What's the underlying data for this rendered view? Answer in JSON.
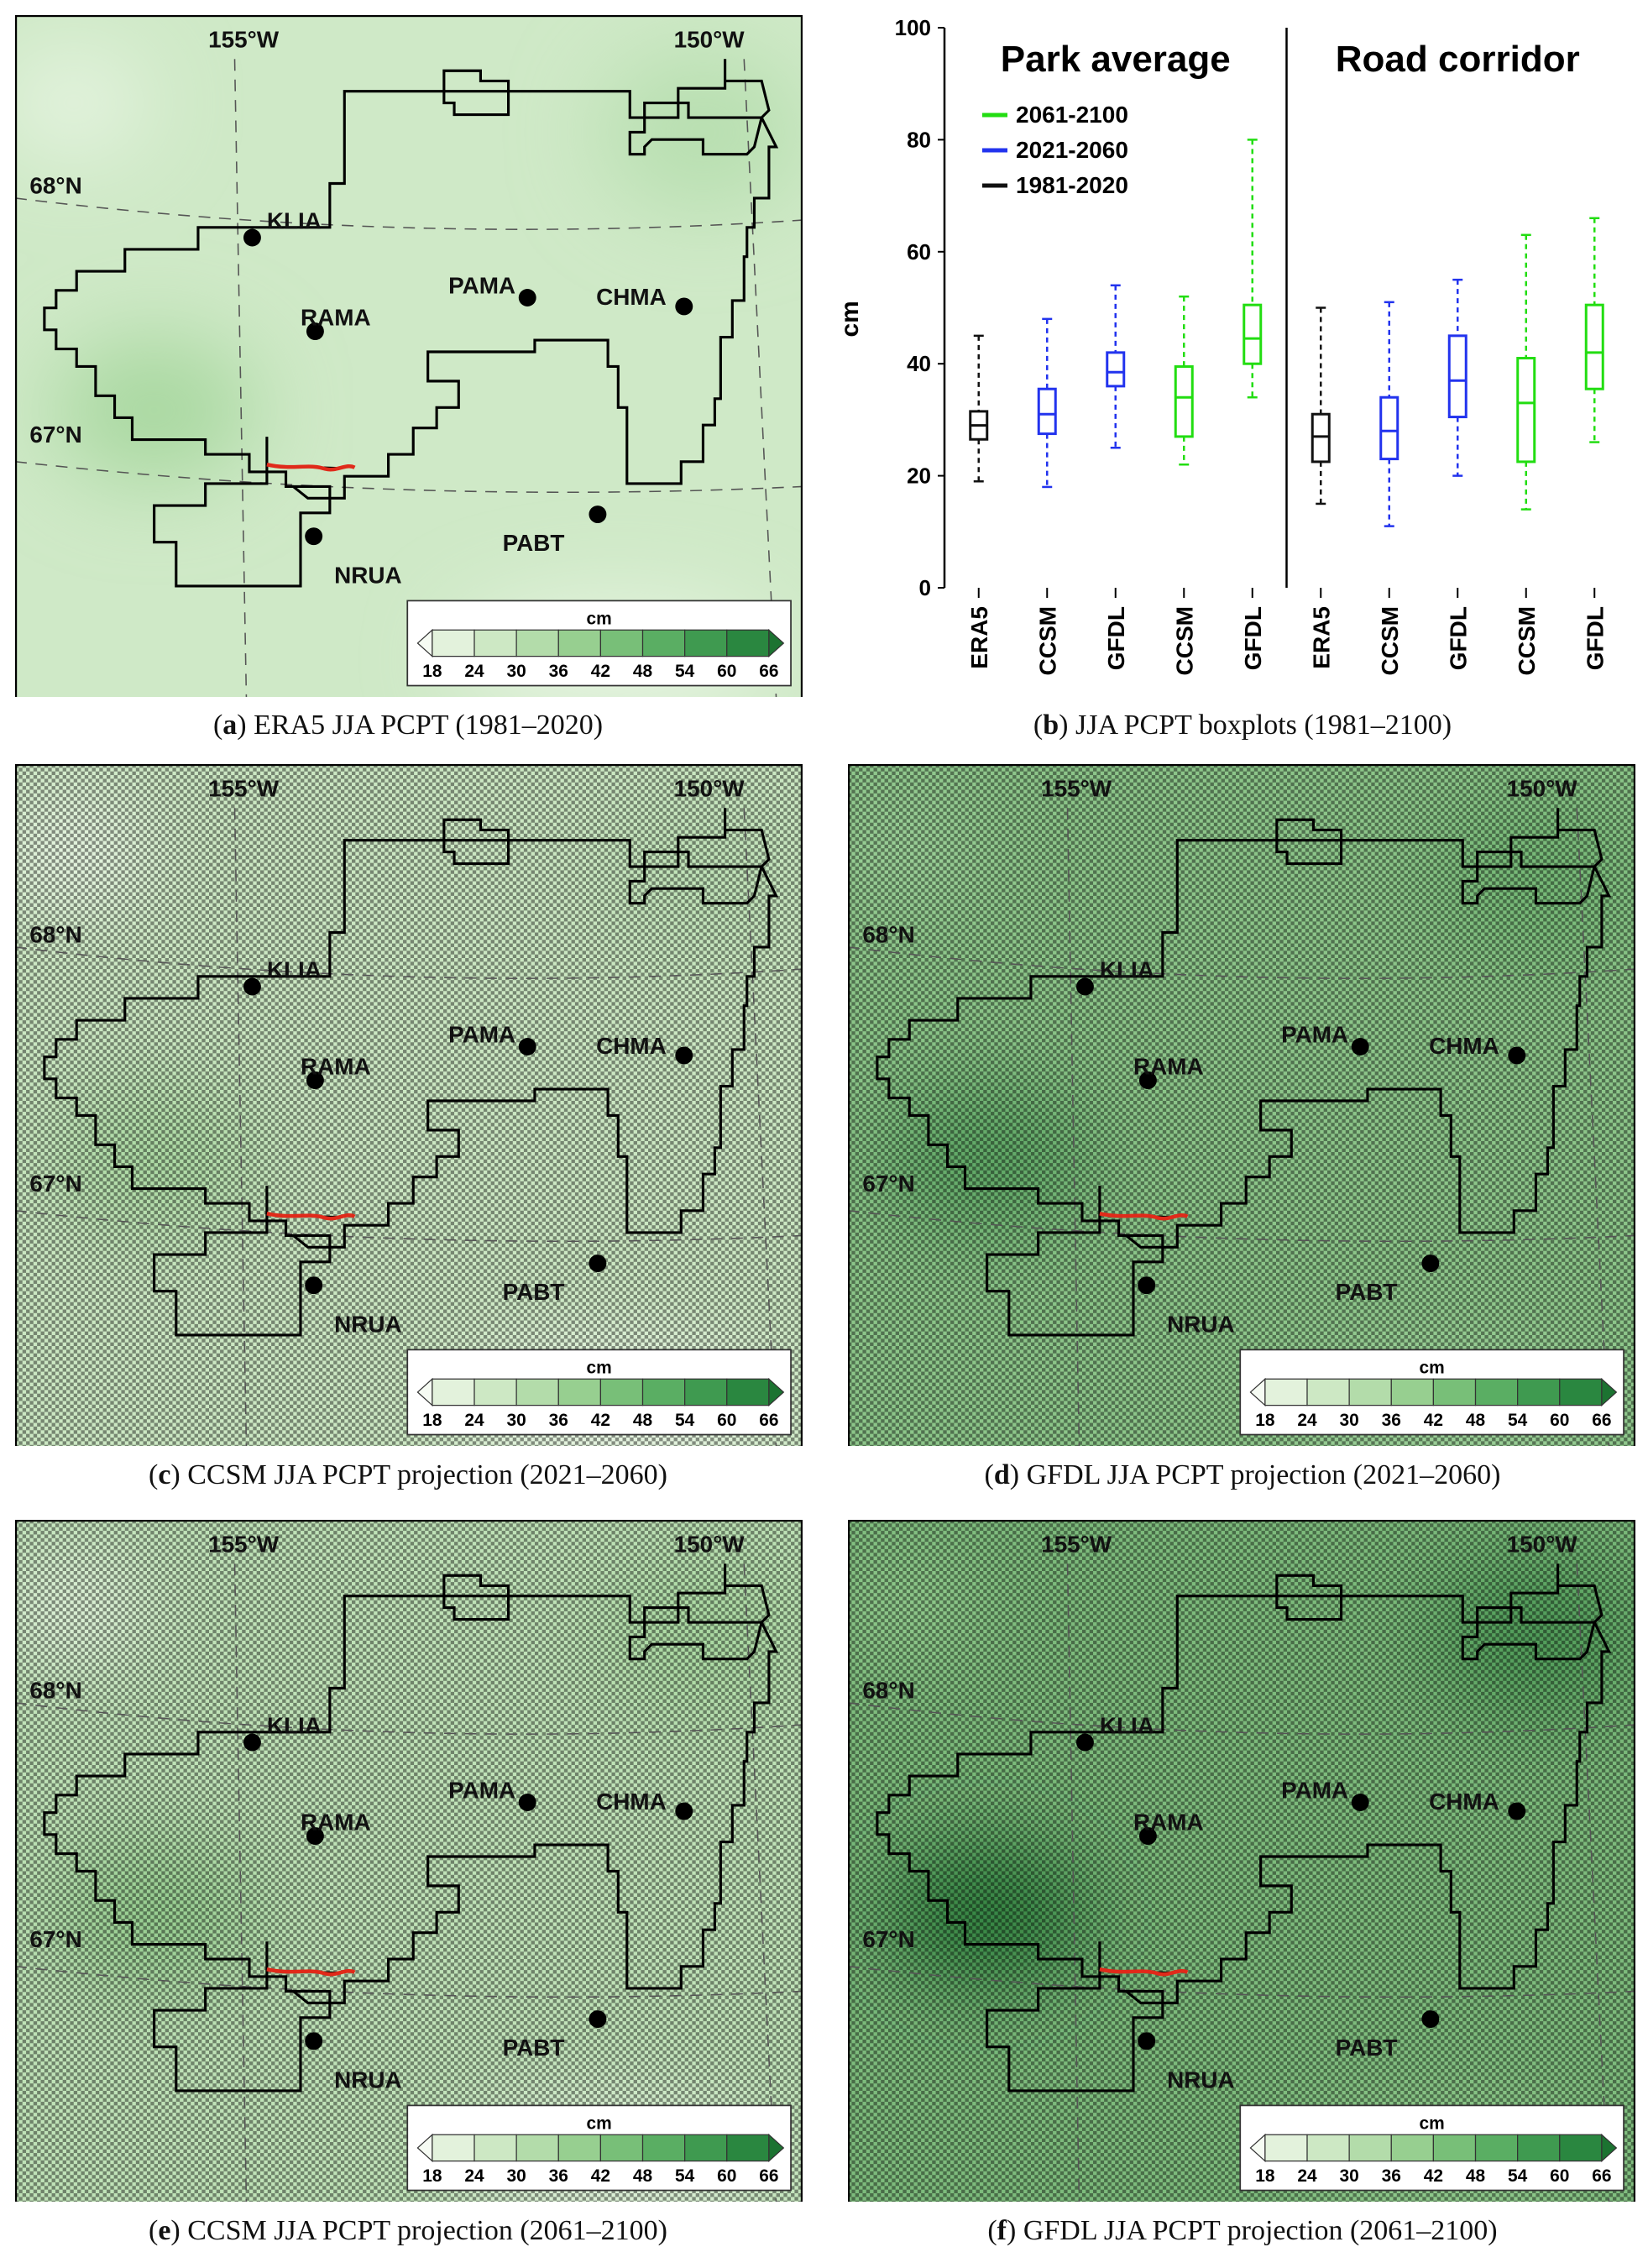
{
  "map_common": {
    "lon_labels": [
      "155°W",
      "150°W"
    ],
    "lat_labels": [
      "68°N",
      "67°N"
    ],
    "stations": [
      "KLIA",
      "RAMA",
      "PAMA",
      "CHMA",
      "PABT",
      "NRUA"
    ],
    "colorbar_title": "cm",
    "colorbar_ticks": [
      "18",
      "24",
      "30",
      "36",
      "42",
      "48",
      "54",
      "60",
      "66"
    ],
    "colorbar_colors": [
      "#f6fbf3",
      "#e3f2dc",
      "#cde8c4",
      "#b3dcaa",
      "#97cf90",
      "#78bf78",
      "#5aae63",
      "#3f9a50",
      "#2a8740",
      "#1c7331"
    ],
    "road_color": "#e02a1a"
  },
  "panels": [
    {
      "letter": "a",
      "caption": "ERA5 JJA PCPT (1981–2020)",
      "hatched": false,
      "base_color": "#cfe9c7",
      "blobs": [
        "#a9d8a0",
        "#e6f4e1",
        "#b8dfb0"
      ]
    },
    {
      "letter": "b",
      "caption": "JJA PCPT boxplots (1981–2100)"
    },
    {
      "letter": "c",
      "caption": "CCSM JJA PCPT projection (2021–2060)",
      "hatched": true,
      "base_color": "#cbe7c2",
      "blobs": [
        "#a9d8a0",
        "#eef8ea",
        "#bfe2b7"
      ]
    },
    {
      "letter": "d",
      "caption": "GFDL JJA PCPT projection (2021–2060)",
      "hatched": true,
      "base_color": "#8cc589",
      "blobs": [
        "#5aa462",
        "#9fd19b",
        "#73b775"
      ]
    },
    {
      "letter": "e",
      "caption": "CCSM JJA PCPT projection (2061–2100)",
      "hatched": true,
      "base_color": "#bfe2b7",
      "blobs": [
        "#93cb8c",
        "#e6f4e1",
        "#a9d8a0"
      ]
    },
    {
      "letter": "f",
      "caption": "GFDL JJA PCPT projection (2061–2100)",
      "hatched": true,
      "base_color": "#7dbb7c",
      "blobs": [
        "#2f7f3d",
        "#95cd90",
        "#4e9a57"
      ]
    }
  ],
  "chart_data": {
    "type": "boxplot",
    "ylabel": "cm",
    "ylim": [
      0,
      100
    ],
    "yticks": [
      0,
      20,
      40,
      60,
      80,
      100
    ],
    "group_titles": [
      "Park average",
      "Road corridor"
    ],
    "categories": [
      "ERA5",
      "CCSM",
      "GFDL",
      "CCSM",
      "GFDL",
      "ERA5",
      "CCSM",
      "GFDL",
      "CCSM",
      "GFDL"
    ],
    "legend": [
      {
        "label": "2061-2100",
        "color": "#22dd11"
      },
      {
        "label": "2021-2060",
        "color": "#2233ee"
      },
      {
        "label": "1981-2020",
        "color": "#111111"
      }
    ],
    "boxes": [
      {
        "group": "Park average",
        "model": "ERA5",
        "period": "1981-2020",
        "color": "#111111",
        "min": 19,
        "q1": 26.5,
        "median": 29,
        "q3": 31.5,
        "max": 45
      },
      {
        "group": "Park average",
        "model": "CCSM",
        "period": "2021-2060",
        "color": "#2233ee",
        "min": 18,
        "q1": 27.5,
        "median": 31,
        "q3": 35.5,
        "max": 48
      },
      {
        "group": "Park average",
        "model": "GFDL",
        "period": "2021-2060",
        "color": "#2233ee",
        "min": 25,
        "q1": 36,
        "median": 38.5,
        "q3": 42,
        "max": 54
      },
      {
        "group": "Park average",
        "model": "CCSM",
        "period": "2061-2100",
        "color": "#22dd11",
        "min": 22,
        "q1": 27,
        "median": 34,
        "q3": 39.5,
        "max": 52
      },
      {
        "group": "Park average",
        "model": "GFDL",
        "period": "2061-2100",
        "color": "#22dd11",
        "min": 34,
        "q1": 40,
        "median": 44.5,
        "q3": 50.5,
        "max": 80
      },
      {
        "group": "Road corridor",
        "model": "ERA5",
        "period": "1981-2020",
        "color": "#111111",
        "min": 15,
        "q1": 22.5,
        "median": 27,
        "q3": 31,
        "max": 50
      },
      {
        "group": "Road corridor",
        "model": "CCSM",
        "period": "2021-2060",
        "color": "#2233ee",
        "min": 11,
        "q1": 23,
        "median": 28,
        "q3": 34,
        "max": 51
      },
      {
        "group": "Road corridor",
        "model": "GFDL",
        "period": "2021-2060",
        "color": "#2233ee",
        "min": 20,
        "q1": 30.5,
        "median": 37,
        "q3": 45,
        "max": 55
      },
      {
        "group": "Road corridor",
        "model": "CCSM",
        "period": "2061-2100",
        "color": "#22dd11",
        "min": 14,
        "q1": 22.5,
        "median": 33,
        "q3": 41,
        "max": 63
      },
      {
        "group": "Road corridor",
        "model": "GFDL",
        "period": "2061-2100",
        "color": "#22dd11",
        "min": 26,
        "q1": 35.5,
        "median": 42,
        "q3": 50.5,
        "max": 66
      }
    ]
  }
}
